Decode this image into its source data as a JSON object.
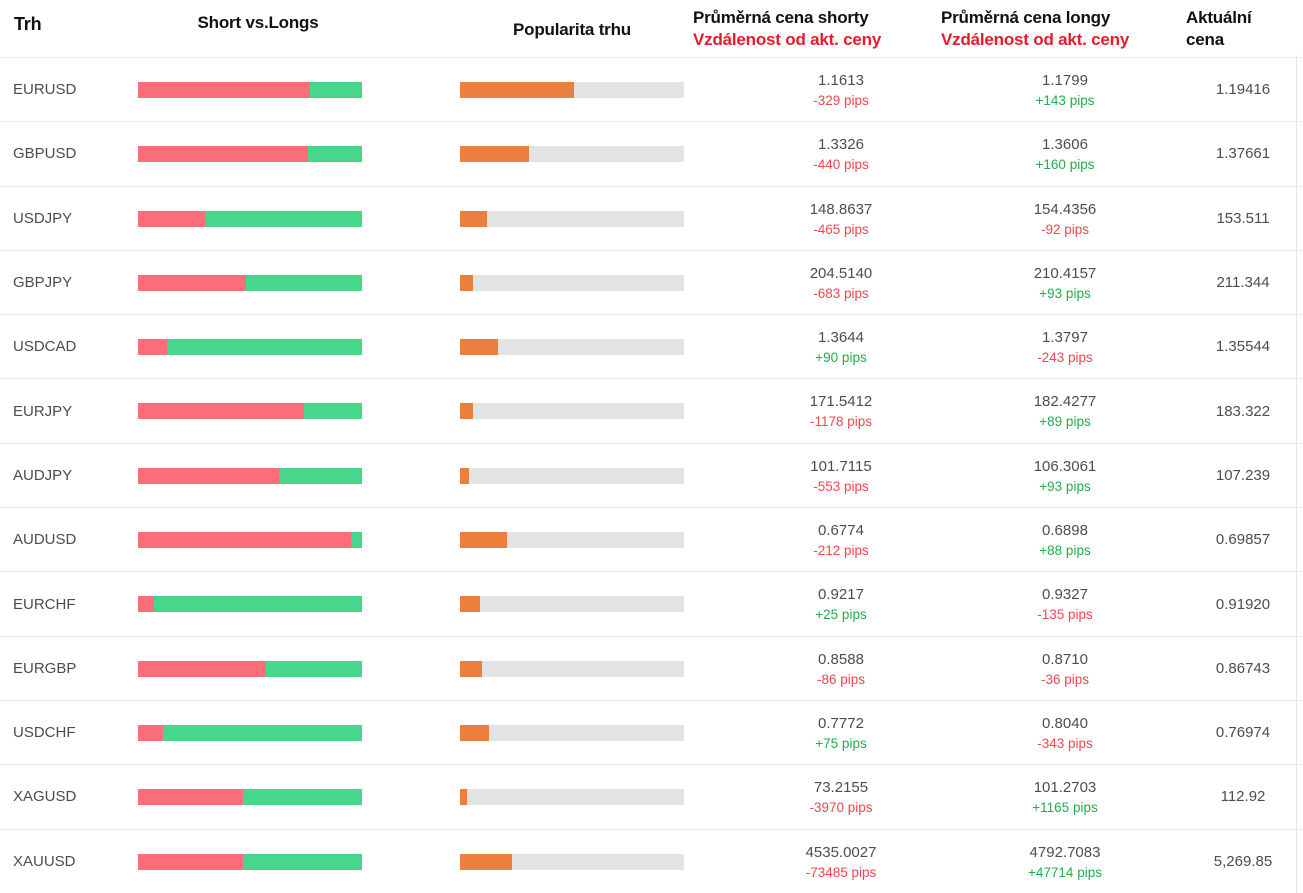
{
  "table": {
    "columns": {
      "market": "Trh",
      "short_vs_longs": "Short vs.Longs",
      "popularity": "Popularita trhu",
      "avg_short_title": "Průměrná cena shorty",
      "avg_short_subtitle": "Vzdálenost od akt. ceny",
      "avg_long_title": "Průměrná cena longy",
      "avg_long_subtitle": "Vzdálenost od akt. ceny",
      "current_title_line1": "Aktuální",
      "current_title_line2": "cena"
    },
    "rows": [
      {
        "pair": "EURUSD",
        "shorts_pct": 77,
        "longs_pct": 23,
        "popularity_pct": 51,
        "avg_short_price": "1.1613",
        "avg_short_pips": "-329 pips",
        "avg_long_price": "1.1799",
        "avg_long_pips": "+143 pips",
        "current_price": "1.19416"
      },
      {
        "pair": "GBPUSD",
        "shorts_pct": 76,
        "longs_pct": 24,
        "popularity_pct": 31,
        "avg_short_price": "1.3326",
        "avg_short_pips": "-440 pips",
        "avg_long_price": "1.3606",
        "avg_long_pips": "+160 pips",
        "current_price": "1.37661"
      },
      {
        "pair": "USDJPY",
        "shorts_pct": 30,
        "longs_pct": 70,
        "popularity_pct": 12,
        "avg_short_price": "148.8637",
        "avg_short_pips": "-465 pips",
        "avg_long_price": "154.4356",
        "avg_long_pips": "-92 pips",
        "current_price": "153.511"
      },
      {
        "pair": "GBPJPY",
        "shorts_pct": 48,
        "longs_pct": 52,
        "popularity_pct": 6,
        "avg_short_price": "204.5140",
        "avg_short_pips": "-683 pips",
        "avg_long_price": "210.4157",
        "avg_long_pips": "+93 pips",
        "current_price": "211.344"
      },
      {
        "pair": "USDCAD",
        "shorts_pct": 13,
        "longs_pct": 87,
        "popularity_pct": 17,
        "avg_short_price": "1.3644",
        "avg_short_pips": "+90 pips",
        "avg_long_price": "1.3797",
        "avg_long_pips": "-243 pips",
        "current_price": "1.35544"
      },
      {
        "pair": "EURJPY",
        "shorts_pct": 74,
        "longs_pct": 26,
        "popularity_pct": 6,
        "avg_short_price": "171.5412",
        "avg_short_pips": "-1178 pips",
        "avg_long_price": "182.4277",
        "avg_long_pips": "+89 pips",
        "current_price": "183.322"
      },
      {
        "pair": "AUDJPY",
        "shorts_pct": 63,
        "longs_pct": 37,
        "popularity_pct": 4,
        "avg_short_price": "101.7115",
        "avg_short_pips": "-553 pips",
        "avg_long_price": "106.3061",
        "avg_long_pips": "+93 pips",
        "current_price": "107.239"
      },
      {
        "pair": "AUDUSD",
        "shorts_pct": 95,
        "longs_pct": 5,
        "popularity_pct": 21,
        "avg_short_price": "0.6774",
        "avg_short_pips": "-212 pips",
        "avg_long_price": "0.6898",
        "avg_long_pips": "+88 pips",
        "current_price": "0.69857"
      },
      {
        "pair": "EURCHF",
        "shorts_pct": 7,
        "longs_pct": 93,
        "popularity_pct": 9,
        "avg_short_price": "0.9217",
        "avg_short_pips": "+25 pips",
        "avg_long_price": "0.9327",
        "avg_long_pips": "-135 pips",
        "current_price": "0.91920"
      },
      {
        "pair": "EURGBP",
        "shorts_pct": 57,
        "longs_pct": 43,
        "popularity_pct": 10,
        "avg_short_price": "0.8588",
        "avg_short_pips": "-86 pips",
        "avg_long_price": "0.8710",
        "avg_long_pips": "-36 pips",
        "current_price": "0.86743"
      },
      {
        "pair": "USDCHF",
        "shorts_pct": 11,
        "longs_pct": 89,
        "popularity_pct": 13,
        "avg_short_price": "0.7772",
        "avg_short_pips": "+75 pips",
        "avg_long_price": "0.8040",
        "avg_long_pips": "-343 pips",
        "current_price": "0.76974"
      },
      {
        "pair": "XAGUSD",
        "shorts_pct": 47,
        "longs_pct": 53,
        "popularity_pct": 3,
        "avg_short_price": "73.2155",
        "avg_short_pips": "-3970 pips",
        "avg_long_price": "101.2703",
        "avg_long_pips": "+1165 pips",
        "current_price": "112.92"
      },
      {
        "pair": "XAUUSD",
        "shorts_pct": 47,
        "longs_pct": 53,
        "popularity_pct": 23,
        "avg_short_price": "4535.0027",
        "avg_short_pips": "-73485 pips",
        "avg_long_price": "4792.7083",
        "avg_long_pips": "+47714 pips",
        "current_price": "5,269.85"
      }
    ]
  },
  "colors": {
    "bar_shorts_red": "#FB6E79",
    "bar_longs_green": "#48D68C",
    "bar_popularity_orange": "#EC7E3E",
    "bar_track_gray": "#E3E3E3",
    "pips_positive_green": "#22AC4D",
    "pips_negative_red": "#F2454E",
    "header_accent_red": "#E81B2B"
  }
}
